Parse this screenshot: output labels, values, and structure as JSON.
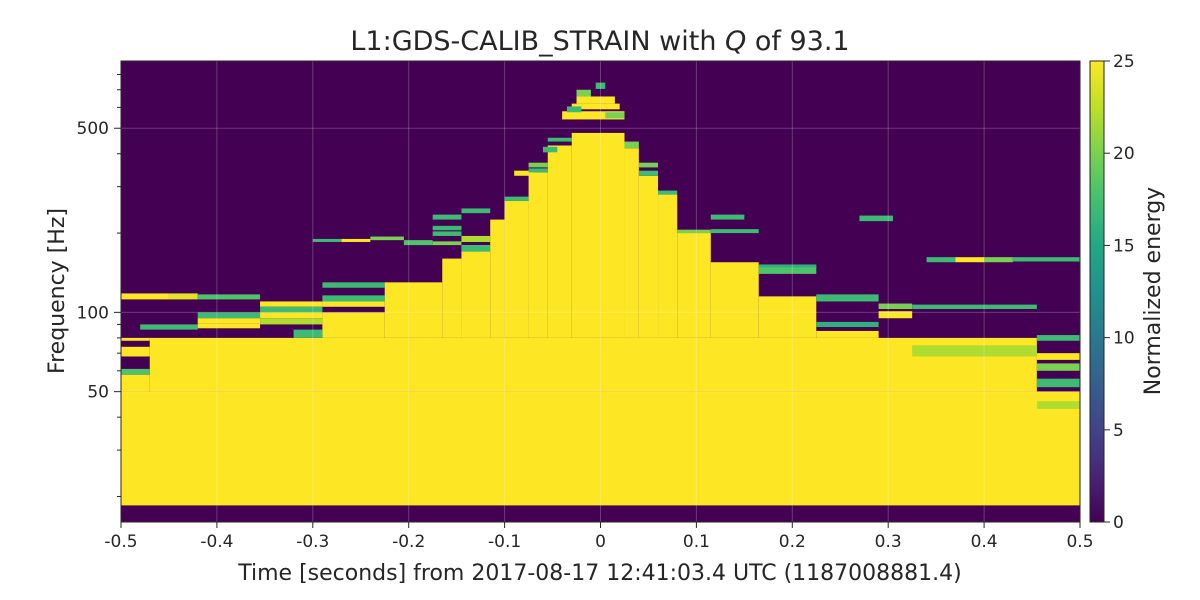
{
  "chart_data": {
    "type": "heatmap",
    "title": {
      "prefix": "L1:GDS-CALIB_STRAIN with ",
      "q": "Q",
      "suffix": " of 93.1"
    },
    "xlabel": "Time [seconds] from 2017-08-17 12:41:03.4 UTC (1187008881.4)",
    "ylabel": "Frequency [Hz]",
    "colorbar_label": "Normalized energy",
    "xlim": [
      -0.5,
      0.5
    ],
    "ylim": [
      16,
      900
    ],
    "yscale": "log",
    "clim": [
      0,
      25
    ],
    "colormap": "viridis",
    "background_color": "#440154",
    "x_ticks": [
      {
        "value": -0.5,
        "label": "-0.5"
      },
      {
        "value": -0.4,
        "label": "-0.4"
      },
      {
        "value": -0.3,
        "label": "-0.3"
      },
      {
        "value": -0.2,
        "label": "-0.2"
      },
      {
        "value": -0.1,
        "label": "-0.1"
      },
      {
        "value": 0,
        "label": "0"
      },
      {
        "value": 0.1,
        "label": "0.1"
      },
      {
        "value": 0.2,
        "label": "0.2"
      },
      {
        "value": 0.3,
        "label": "0.3"
      },
      {
        "value": 0.4,
        "label": "0.4"
      },
      {
        "value": 0.5,
        "label": "0.5"
      }
    ],
    "y_ticks": [
      {
        "value": 50,
        "label": "50"
      },
      {
        "value": 100,
        "label": "100"
      },
      {
        "value": 500,
        "label": "500"
      }
    ],
    "colorbar_ticks": [
      {
        "value": 0,
        "label": "0"
      },
      {
        "value": 5,
        "label": "5"
      },
      {
        "value": 10,
        "label": "10"
      },
      {
        "value": 15,
        "label": "15"
      },
      {
        "value": 20,
        "label": "20"
      },
      {
        "value": 25,
        "label": "25"
      }
    ],
    "tiles": [
      {
        "t0": -0.5,
        "t1": 0.5,
        "f0": 18.5,
        "f1": 50,
        "e": 25
      },
      {
        "t0": -0.47,
        "t1": 0.455,
        "f0": 50,
        "f1": 80,
        "e": 25
      },
      {
        "t0": -0.5,
        "t1": -0.47,
        "f0": 50,
        "f1": 58,
        "e": 25
      },
      {
        "t0": -0.5,
        "t1": -0.47,
        "f0": 68,
        "f1": 74,
        "e": 25
      },
      {
        "t0": -0.5,
        "t1": -0.47,
        "f0": 58,
        "f1": 61,
        "e": 18
      },
      {
        "t0": -0.5,
        "t1": -0.45,
        "f0": 112,
        "f1": 118,
        "e": 25
      },
      {
        "t0": -0.45,
        "t1": -0.42,
        "f0": 112,
        "f1": 118,
        "e": 24
      },
      {
        "t0": -0.42,
        "t1": -0.355,
        "f0": 112,
        "f1": 117,
        "e": 18
      },
      {
        "t0": -0.48,
        "t1": -0.42,
        "f0": 86,
        "f1": 90,
        "e": 17
      },
      {
        "t0": -0.42,
        "t1": -0.355,
        "f0": 87,
        "f1": 91,
        "e": 25
      },
      {
        "t0": -0.42,
        "t1": -0.355,
        "f0": 95,
        "f1": 100,
        "e": 17
      },
      {
        "t0": -0.42,
        "t1": -0.355,
        "f0": 91,
        "f1": 95,
        "e": 25
      },
      {
        "t0": -0.355,
        "t1": -0.29,
        "f0": 105,
        "f1": 110,
        "e": 25
      },
      {
        "t0": -0.355,
        "t1": -0.29,
        "f0": 100,
        "f1": 105,
        "e": 17
      },
      {
        "t0": -0.355,
        "t1": -0.29,
        "f0": 95,
        "f1": 100,
        "e": 25
      },
      {
        "t0": -0.355,
        "t1": -0.29,
        "f0": 90,
        "f1": 95,
        "e": 22
      },
      {
        "t0": -0.29,
        "t1": -0.225,
        "f0": 80,
        "f1": 100,
        "e": 25
      },
      {
        "t0": -0.29,
        "t1": -0.225,
        "f0": 105,
        "f1": 110,
        "e": 25
      },
      {
        "t0": -0.29,
        "t1": -0.225,
        "f0": 110,
        "f1": 116,
        "e": 17
      },
      {
        "t0": -0.29,
        "t1": -0.225,
        "f0": 124,
        "f1": 130,
        "e": 17
      },
      {
        "t0": -0.225,
        "t1": -0.165,
        "f0": 80,
        "f1": 130,
        "e": 25
      },
      {
        "t0": -0.165,
        "t1": -0.145,
        "f0": 80,
        "f1": 160,
        "e": 25
      },
      {
        "t0": -0.145,
        "t1": -0.115,
        "f0": 80,
        "f1": 180,
        "e": 25
      },
      {
        "t0": -0.115,
        "t1": -0.1,
        "f0": 80,
        "f1": 225,
        "e": 25
      },
      {
        "t0": -0.1,
        "t1": -0.075,
        "f0": 80,
        "f1": 265,
        "e": 25
      },
      {
        "t0": -0.075,
        "t1": -0.055,
        "f0": 80,
        "f1": 340,
        "e": 25
      },
      {
        "t0": -0.055,
        "t1": -0.03,
        "f0": 80,
        "f1": 430,
        "e": 25
      },
      {
        "t0": -0.03,
        "t1": 0.025,
        "f0": 80,
        "f1": 480,
        "e": 25
      },
      {
        "t0": 0.025,
        "t1": 0.04,
        "f0": 80,
        "f1": 420,
        "e": 25
      },
      {
        "t0": 0.04,
        "t1": 0.06,
        "f0": 80,
        "f1": 330,
        "e": 25
      },
      {
        "t0": 0.06,
        "t1": 0.08,
        "f0": 80,
        "f1": 280,
        "e": 25
      },
      {
        "t0": 0.08,
        "t1": 0.115,
        "f0": 80,
        "f1": 200,
        "e": 25
      },
      {
        "t0": 0.115,
        "t1": 0.165,
        "f0": 80,
        "f1": 155,
        "e": 25
      },
      {
        "t0": 0.165,
        "t1": 0.225,
        "f0": 80,
        "f1": 115,
        "e": 25
      },
      {
        "t0": 0.225,
        "t1": 0.29,
        "f0": 80,
        "f1": 85,
        "e": 25
      },
      {
        "t0": -0.5,
        "t1": -0.47,
        "f0": 78,
        "f1": 80,
        "e": 25
      },
      {
        "t0": -0.32,
        "t1": -0.29,
        "f0": 80,
        "f1": 86,
        "e": 17
      },
      {
        "t0": -0.42,
        "t1": -0.32,
        "f0": 66,
        "f1": 72,
        "e": 25
      },
      {
        "t0": -0.42,
        "t1": -0.32,
        "f0": 60,
        "f1": 64,
        "e": 25
      },
      {
        "t0": 0.325,
        "t1": 0.455,
        "f0": 68,
        "f1": 75,
        "e": 22
      },
      {
        "t0": 0.455,
        "t1": 0.5,
        "f0": 78,
        "f1": 82,
        "e": 17
      },
      {
        "t0": 0.455,
        "t1": 0.5,
        "f0": 66,
        "f1": 70,
        "e": 25
      },
      {
        "t0": 0.455,
        "t1": 0.5,
        "f0": 60,
        "f1": 64,
        "e": 20
      },
      {
        "t0": 0.455,
        "t1": 0.5,
        "f0": 52,
        "f1": 56,
        "e": 17
      },
      {
        "t0": 0.455,
        "t1": 0.5,
        "f0": 47,
        "f1": 50,
        "e": 25
      },
      {
        "t0": 0.455,
        "t1": 0.5,
        "f0": 43,
        "f1": 46,
        "e": 22
      },
      {
        "t0": 0.29,
        "t1": 0.325,
        "f0": 95,
        "f1": 101,
        "e": 25
      },
      {
        "t0": 0.29,
        "t1": 0.325,
        "f0": 103,
        "f1": 108,
        "e": 20
      },
      {
        "t0": 0.325,
        "t1": 0.455,
        "f0": 103,
        "f1": 107,
        "e": 17
      },
      {
        "t0": 0.225,
        "t1": 0.29,
        "f0": 110,
        "f1": 117,
        "e": 17
      },
      {
        "t0": 0.225,
        "t1": 0.29,
        "f0": 88,
        "f1": 92,
        "e": 16
      },
      {
        "t0": 0.165,
        "t1": 0.225,
        "f0": 140,
        "f1": 150,
        "e": 18
      },
      {
        "t0": 0.165,
        "t1": 0.225,
        "f0": 148,
        "f1": 152,
        "e": 16
      },
      {
        "t0": 0.08,
        "t1": 0.115,
        "f0": 200,
        "f1": 206,
        "e": 20
      },
      {
        "t0": 0.115,
        "t1": 0.165,
        "f0": 200,
        "f1": 207,
        "e": 17
      },
      {
        "t0": 0.115,
        "t1": 0.15,
        "f0": 225,
        "f1": 235,
        "e": 17
      },
      {
        "t0": 0.27,
        "t1": 0.305,
        "f0": 222,
        "f1": 233,
        "e": 17
      },
      {
        "t0": 0.34,
        "t1": 0.37,
        "f0": 155,
        "f1": 162,
        "e": 17
      },
      {
        "t0": 0.37,
        "t1": 0.4,
        "f0": 155,
        "f1": 162,
        "e": 25
      },
      {
        "t0": 0.4,
        "t1": 0.43,
        "f0": 155,
        "f1": 162,
        "e": 20
      },
      {
        "t0": 0.43,
        "t1": 0.5,
        "f0": 156,
        "f1": 162,
        "e": 17
      },
      {
        "t0": -0.3,
        "t1": -0.27,
        "f0": 185,
        "f1": 190,
        "e": 17
      },
      {
        "t0": -0.27,
        "t1": -0.24,
        "f0": 185,
        "f1": 190,
        "e": 25
      },
      {
        "t0": -0.24,
        "t1": -0.205,
        "f0": 188,
        "f1": 194,
        "e": 20
      },
      {
        "t0": -0.205,
        "t1": -0.175,
        "f0": 180,
        "f1": 188,
        "e": 18
      },
      {
        "t0": -0.175,
        "t1": -0.145,
        "f0": 195,
        "f1": 203,
        "e": 17
      },
      {
        "t0": -0.175,
        "t1": -0.145,
        "f0": 205,
        "f1": 213,
        "e": 17
      },
      {
        "t0": -0.175,
        "t1": -0.145,
        "f0": 180,
        "f1": 186,
        "e": 20
      },
      {
        "t0": -0.145,
        "t1": -0.115,
        "f0": 170,
        "f1": 180,
        "e": 17
      },
      {
        "t0": -0.145,
        "t1": -0.115,
        "f0": 185,
        "f1": 195,
        "e": 22
      },
      {
        "t0": -0.175,
        "t1": -0.145,
        "f0": 225,
        "f1": 235,
        "e": 17
      },
      {
        "t0": -0.145,
        "t1": -0.115,
        "f0": 238,
        "f1": 248,
        "e": 17
      },
      {
        "t0": -0.1,
        "t1": -0.075,
        "f0": 265,
        "f1": 275,
        "e": 17
      },
      {
        "t0": -0.09,
        "t1": -0.07,
        "f0": 330,
        "f1": 345,
        "e": 25
      },
      {
        "t0": -0.075,
        "t1": -0.055,
        "f0": 340,
        "f1": 352,
        "e": 17
      },
      {
        "t0": -0.075,
        "t1": -0.055,
        "f0": 355,
        "f1": 370,
        "e": 20
      },
      {
        "t0": -0.06,
        "t1": -0.045,
        "f0": 405,
        "f1": 425,
        "e": 17
      },
      {
        "t0": -0.055,
        "t1": -0.03,
        "f0": 445,
        "f1": 460,
        "e": 17
      },
      {
        "t0": -0.04,
        "t1": 0.025,
        "f0": 540,
        "f1": 580,
        "e": 25
      },
      {
        "t0": -0.03,
        "t1": 0.02,
        "f0": 590,
        "f1": 620,
        "e": 25
      },
      {
        "t0": -0.025,
        "t1": 0.015,
        "f0": 620,
        "f1": 660,
        "e": 25
      },
      {
        "t0": -0.025,
        "t1": -0.01,
        "f0": 660,
        "f1": 700,
        "e": 20
      },
      {
        "t0": -0.005,
        "t1": 0.005,
        "f0": 705,
        "f1": 745,
        "e": 17
      },
      {
        "t0": 0.005,
        "t1": 0.025,
        "f0": 545,
        "f1": 575,
        "e": 20
      },
      {
        "t0": -0.035,
        "t1": -0.02,
        "f0": 575,
        "f1": 605,
        "e": 17
      },
      {
        "t0": 0.025,
        "t1": 0.04,
        "f0": 420,
        "f1": 445,
        "e": 20
      },
      {
        "t0": 0.04,
        "t1": 0.06,
        "f0": 330,
        "f1": 345,
        "e": 17
      },
      {
        "t0": 0.04,
        "t1": 0.06,
        "f0": 355,
        "f1": 370,
        "e": 20
      },
      {
        "t0": 0.06,
        "t1": 0.08,
        "f0": 280,
        "f1": 290,
        "e": 17
      },
      {
        "t0": -0.4,
        "t1": -0.32,
        "f0": 76,
        "f1": 79,
        "e": 25
      }
    ]
  }
}
